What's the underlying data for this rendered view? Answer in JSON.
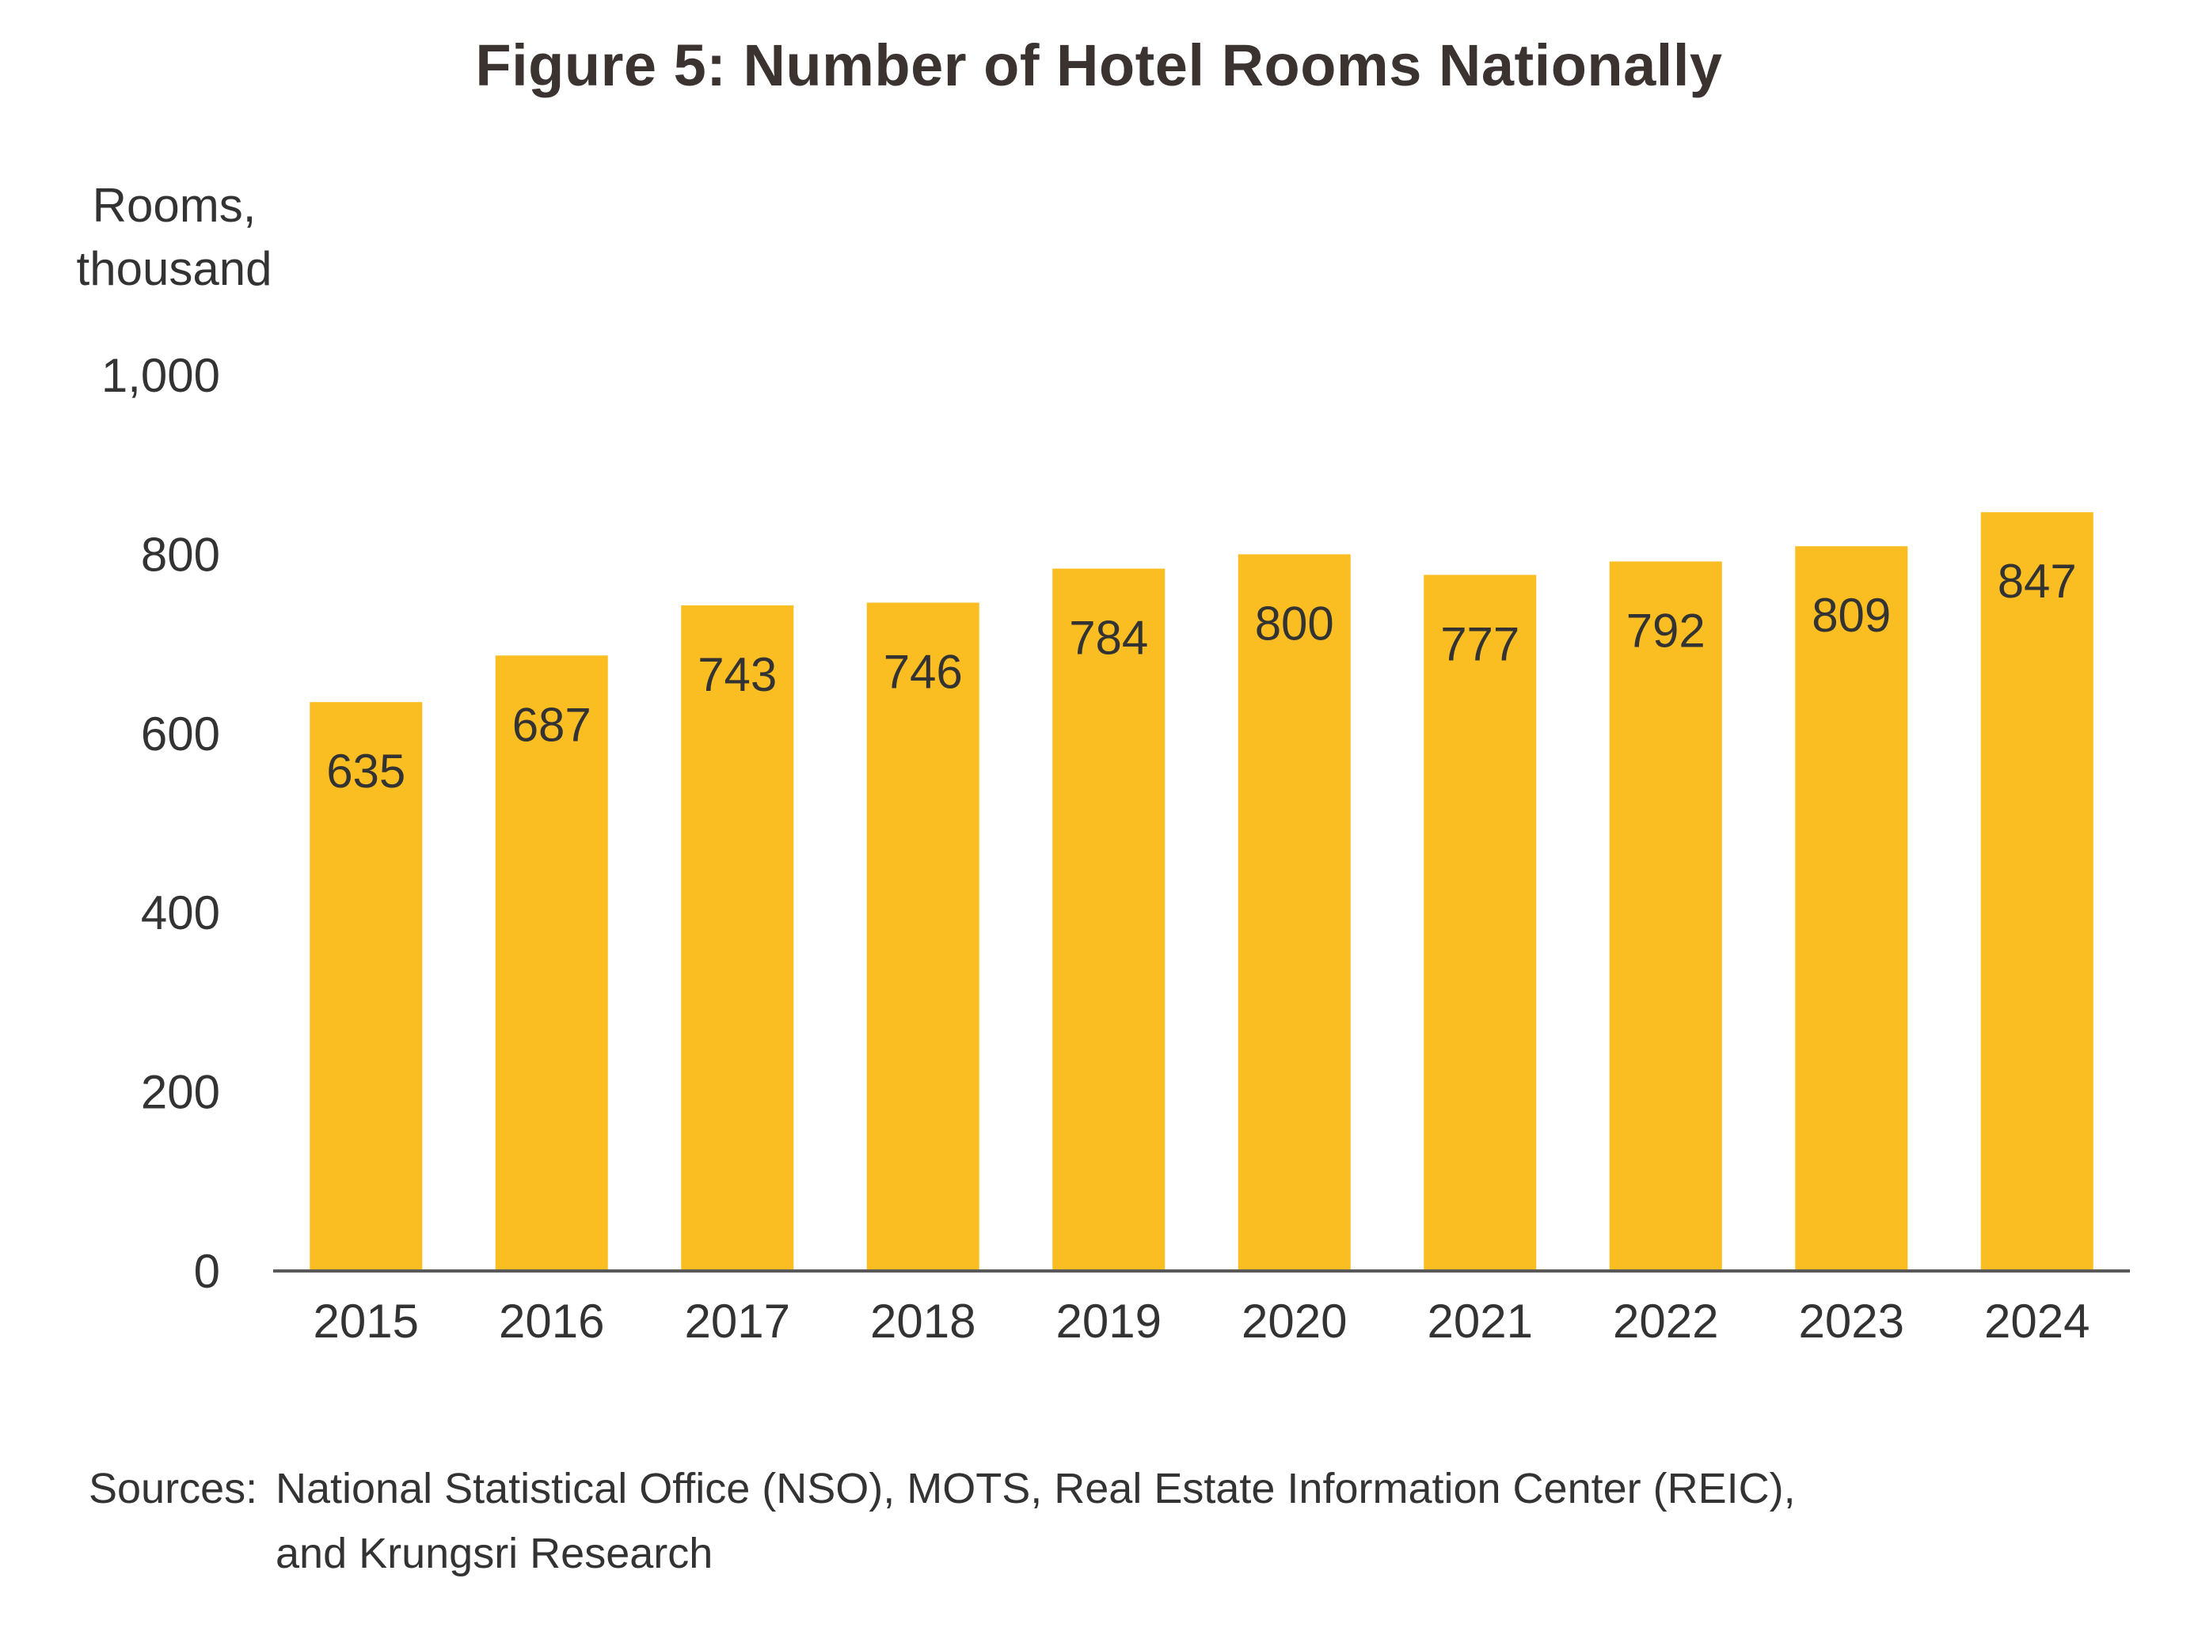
{
  "chart_data": {
    "type": "bar",
    "title": "Figure 5: Number of Hotel Rooms Nationally",
    "ylabel_lines": [
      "Rooms,",
      "thousand"
    ],
    "xlabel": "",
    "categories": [
      "2015",
      "2016",
      "2017",
      "2018",
      "2019",
      "2020",
      "2021",
      "2022",
      "2023",
      "2024"
    ],
    "values": [
      635,
      687,
      743,
      746,
      784,
      800,
      777,
      792,
      809,
      847
    ],
    "data_labels": [
      "635",
      "687",
      "743",
      "746",
      "784",
      "800",
      "777",
      "792",
      "809",
      "847"
    ],
    "ylim": [
      0,
      1000
    ],
    "yticks": [
      0,
      200,
      400,
      600,
      800,
      1000
    ],
    "ytick_labels": [
      "0",
      "200",
      "400",
      "600",
      "800",
      "1,000"
    ],
    "grid": false,
    "bar_color": "#FBBE22",
    "axis_color": "#595959"
  },
  "sources": {
    "label": "Sources:",
    "line1": "National Statistical Office (NSO), MOTS, Real Estate Information Center (REIC),",
    "line2": "and Krungsri Research"
  }
}
